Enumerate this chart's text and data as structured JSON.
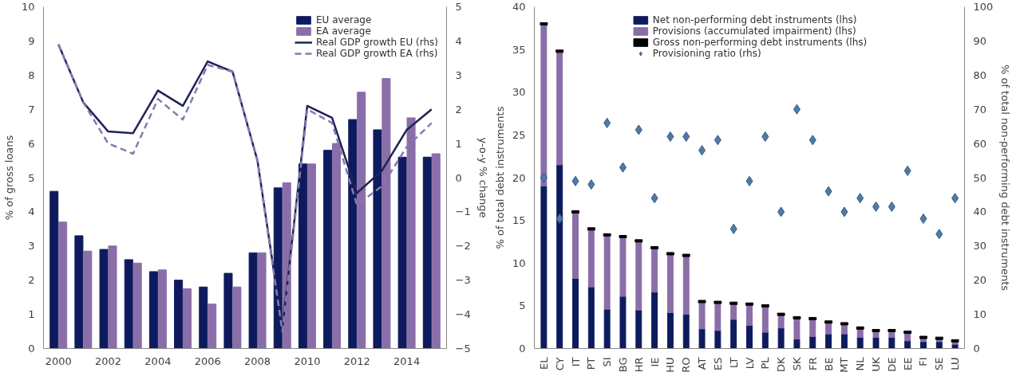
{
  "chart_data": [
    {
      "type": "bar",
      "categories": [
        "2000",
        null,
        "2002",
        null,
        "2004",
        null,
        "2006",
        null,
        "2008",
        null,
        "2010",
        null,
        "2012",
        null,
        "2014",
        null
      ],
      "ylabel": "% of gross loans",
      "y2label": "y-o-y % change",
      "ylim": [
        0,
        10
      ],
      "yticks": [
        0,
        1,
        2,
        3,
        4,
        5,
        6,
        7,
        8,
        9,
        10
      ],
      "y2lim": [
        -5,
        5
      ],
      "y2ticks": [
        -5,
        -4,
        -3,
        -2,
        -1,
        0,
        1,
        2,
        3,
        4,
        5
      ],
      "grid": false,
      "legend": "top right",
      "series": [
        {
          "name": "EU average",
          "color": "#0d1b5e",
          "values": [
            4.6,
            3.3,
            2.9,
            2.6,
            2.25,
            2.0,
            1.8,
            2.2,
            2.8,
            4.7,
            5.4,
            5.8,
            6.7,
            6.4,
            5.6,
            5.6
          ]
        },
        {
          "name": "EA average",
          "color": "#8a6ea8",
          "values": [
            3.7,
            2.85,
            3.0,
            2.5,
            2.3,
            1.75,
            1.3,
            1.8,
            2.8,
            4.85,
            5.4,
            6.0,
            7.5,
            7.9,
            6.75,
            5.7
          ]
        },
        {
          "name": "Real GDP growth EU (rhs)",
          "type": "line",
          "axis": "y2",
          "line_style": "solid",
          "color": "#1c2358",
          "values": [
            3.9,
            2.2,
            1.35,
            1.3,
            2.55,
            2.1,
            3.4,
            3.1,
            0.5,
            -4.4,
            2.1,
            1.75,
            -0.45,
            0.2,
            1.4,
            2.0
          ]
        },
        {
          "name": "Real GDP growth EA (rhs)",
          "type": "line",
          "axis": "y2",
          "line_style": "dashed",
          "color": "#8a78b0",
          "values": [
            3.9,
            2.2,
            1.0,
            0.7,
            2.3,
            1.7,
            3.3,
            3.1,
            0.5,
            -4.5,
            2.0,
            1.6,
            -0.8,
            -0.25,
            0.9,
            1.6
          ]
        }
      ]
    },
    {
      "type": "bar",
      "stacked": true,
      "categories": [
        "EL",
        "CY",
        "IT",
        "PT",
        "SI",
        "BG",
        "HR",
        "IE",
        "HU",
        "RO",
        "AT",
        "ES",
        "LT",
        "LV",
        "PL",
        "DK",
        "SK",
        "FR",
        "BE",
        "MT",
        "NL",
        "UK",
        "DE",
        "EE",
        "FI",
        "SE",
        "LU"
      ],
      "ylabel": "% of total debt instruments",
      "y2label": "% of total non-performing debt instruments",
      "ylim": [
        0,
        40
      ],
      "yticks": [
        0,
        5,
        10,
        15,
        20,
        25,
        30,
        35,
        40
      ],
      "y2lim": [
        0,
        100
      ],
      "y2ticks": [
        0,
        10,
        20,
        30,
        40,
        50,
        60,
        70,
        80,
        90,
        100
      ],
      "grid": false,
      "legend": "top",
      "series": [
        {
          "name": "Net non-performing debt instruments (lhs)",
          "color": "#0d1b5e",
          "values": [
            19,
            21.5,
            8.2,
            7.2,
            4.6,
            6.1,
            4.5,
            6.6,
            4.2,
            4.0,
            2.3,
            2.1,
            3.4,
            2.7,
            1.9,
            2.4,
            1.1,
            1.4,
            1.7,
            1.7,
            1.3,
            1.3,
            1.3,
            0.9,
            0.8,
            0.8,
            0.5
          ]
        },
        {
          "name": "Provisions (accumulated impairment) (lhs)",
          "color": "#8a6ea8",
          "values": [
            19,
            13.3,
            7.8,
            6.8,
            8.7,
            7.0,
            8.1,
            5.2,
            6.9,
            6.9,
            3.2,
            3.3,
            1.9,
            2.5,
            3.1,
            1.6,
            2.5,
            2.1,
            1.4,
            1.2,
            1.1,
            0.8,
            0.8,
            1.0,
            0.5,
            0.4,
            0.4
          ]
        },
        {
          "name": "Gross non-performing debt instruments (lhs)",
          "type": "scatter",
          "color": "#000000",
          "values": [
            38,
            34.8,
            16,
            14,
            13.3,
            13.1,
            12.6,
            11.8,
            11.1,
            10.9,
            5.5,
            5.4,
            5.3,
            5.2,
            5.0,
            4.0,
            3.6,
            3.5,
            3.1,
            2.9,
            2.4,
            2.1,
            2.1,
            1.9,
            1.3,
            1.2,
            0.9
          ]
        },
        {
          "name": "Provisioning ratio (rhs)",
          "type": "scatter",
          "marker": "diamond",
          "axis": "y2",
          "color": "#4f7ba6",
          "values": [
            50,
            38,
            49,
            48,
            66,
            53,
            64,
            44,
            62,
            62,
            58,
            61,
            35,
            49,
            62,
            40,
            70,
            61,
            46,
            40,
            44,
            41.5,
            41.5,
            52,
            38,
            33.5,
            44
          ]
        }
      ]
    }
  ]
}
